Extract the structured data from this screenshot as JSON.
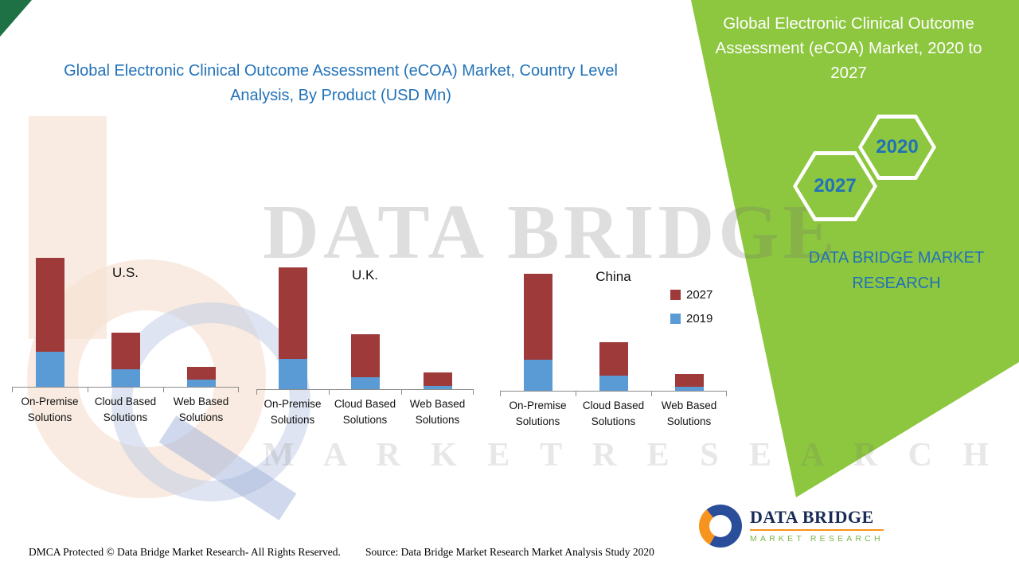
{
  "page": {
    "left_title": "Global Electronic Clinical Outcome Assessment (eCOA) Market, Country Level Analysis, By Product (USD Mn)",
    "right_title": "Global Electronic Clinical Outcome Assessment (eCOA) Market, 2020 to 2027",
    "brand_text": "DATA BRIDGE MARKET RESEARCH",
    "hexagons": [
      {
        "label": "2027"
      },
      {
        "label": "2020"
      }
    ],
    "watermark": {
      "line1": "DATA BRIDGE",
      "line2": "M A R K E T   R E S E A R C H"
    },
    "footer": {
      "dmca": "DMCA Protected © Data Bridge Market Research- All Rights Reserved.",
      "source": "Source: Data Bridge Market Research Market Analysis Study 2020"
    },
    "logo": {
      "name": "DATA BRIDGE",
      "sub": "MARKET RESEARCH"
    }
  },
  "colors": {
    "panel_green": "#8DC63F",
    "corner_dark_green": "#1E7145",
    "title_blue": "#2272B8",
    "bar_red_2027": "#9E3A3A",
    "bar_blue_2019": "#5B9BD5"
  },
  "legend": [
    {
      "label": "2027",
      "color": "#9E3A3A"
    },
    {
      "label": "2019",
      "color": "#5B9BD5"
    }
  ],
  "chart_data": {
    "type": "bar",
    "stacked": true,
    "title": "Global Electronic Clinical Outcome Assessment (eCOA) Market, Country Level Analysis, By Product (USD Mn)",
    "value_unit": "USD Mn",
    "note": "No numeric value axis is shown in the image; values are estimated relative magnitudes read from bar heights.",
    "ylim": [
      0,
      170
    ],
    "y_axis_visible": false,
    "legend_position": "right",
    "categories": [
      "On-Premise Solutions",
      "Cloud Based Solutions",
      "Web Based Solutions"
    ],
    "legend_entries": [
      "2027",
      "2019"
    ],
    "charts": [
      {
        "country": "U.S.",
        "series": [
          {
            "name": "2027",
            "values": [
              118,
              46,
              16
            ]
          },
          {
            "name": "2019",
            "values": [
              44,
              22,
              9
            ]
          }
        ]
      },
      {
        "country": "U.K.",
        "series": [
          {
            "name": "2027",
            "values": [
              115,
              54,
              17
            ]
          },
          {
            "name": "2019",
            "values": [
              38,
              15,
              4
            ]
          }
        ]
      },
      {
        "country": "China",
        "series": [
          {
            "name": "2027",
            "values": [
              108,
              42,
              16
            ]
          },
          {
            "name": "2019",
            "values": [
              39,
              19,
              5
            ]
          }
        ]
      }
    ]
  }
}
